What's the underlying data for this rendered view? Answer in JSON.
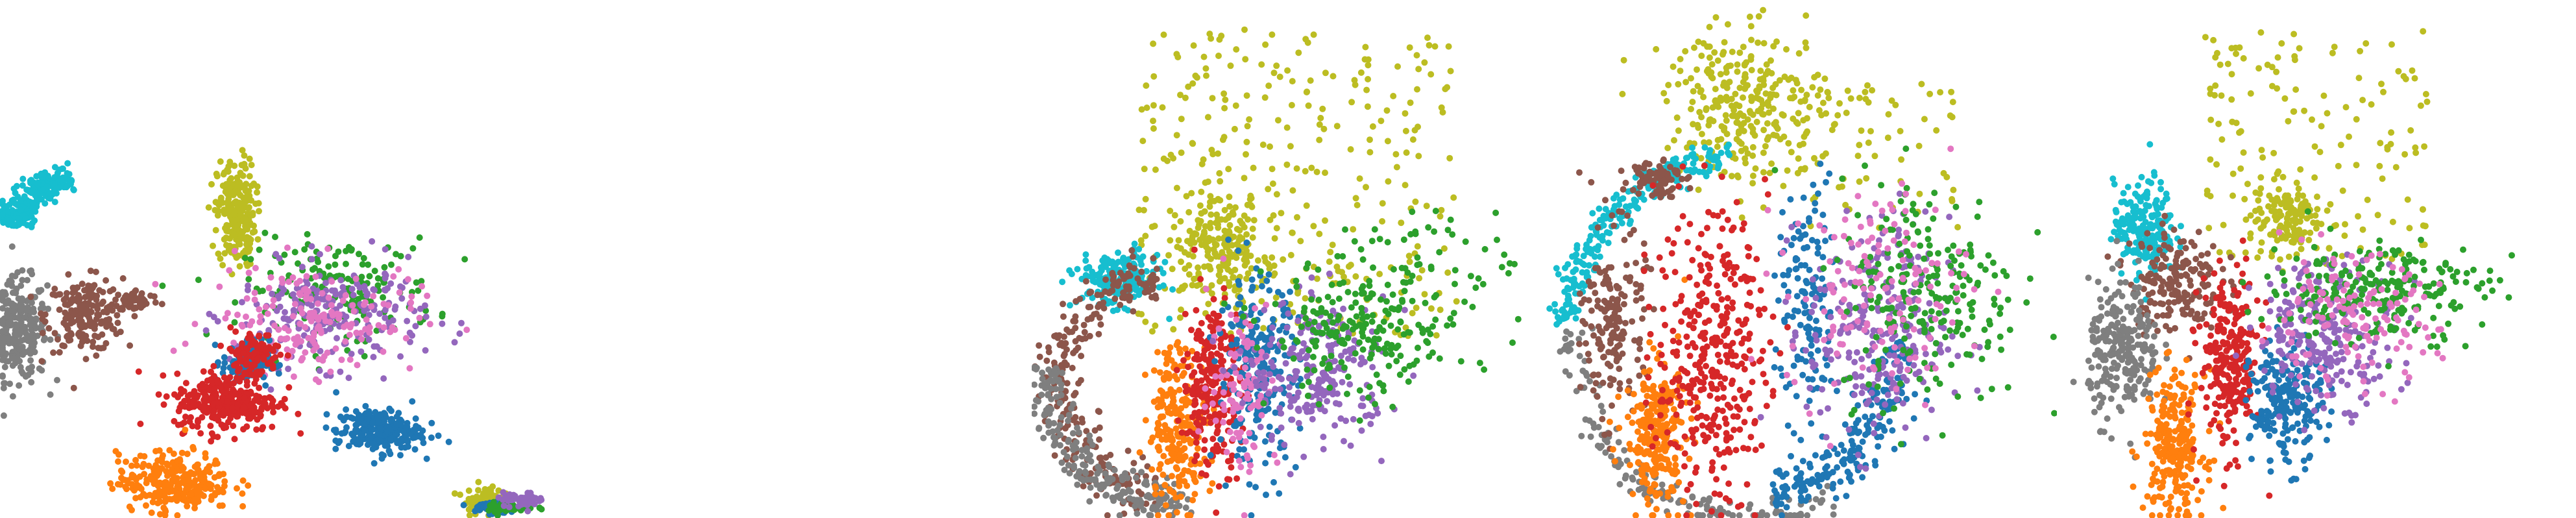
{
  "figure": {
    "axes_visible": false,
    "point_size": "small"
  },
  "colors": {
    "blue": "#1f77b4",
    "orange": "#ff7f0e",
    "green": "#2ca02c",
    "red": "#d62728",
    "purple": "#9467bd",
    "brown": "#8c564b",
    "pink": "#e377c2",
    "gray": "#7f7f7f",
    "olive": "#bcbd22",
    "cyan": "#17becf"
  },
  "chart_data": [
    {
      "type": "scatter",
      "grid": false,
      "legend": "none",
      "xlim": [
        0,
        100
      ],
      "ylim": [
        0,
        100
      ],
      "clusters": [
        {
          "color": "cyan",
          "shape": "arc",
          "cx": 22,
          "cy": 78,
          "r": 16,
          "a0": 100,
          "a1": 170,
          "thick": 4,
          "n": 220
        },
        {
          "color": "gray",
          "shape": "blob",
          "cx": 8,
          "cy": 52,
          "rx": 6,
          "ry": 14,
          "n": 260
        },
        {
          "color": "brown",
          "shape": "blob",
          "cx": 22,
          "cy": 56,
          "rx": 8,
          "ry": 10,
          "n": 200
        },
        {
          "color": "brown",
          "shape": "blob",
          "cx": 33,
          "cy": 60,
          "rx": 5,
          "ry": 3,
          "n": 50
        },
        {
          "color": "olive",
          "shape": "blob",
          "cx": 54,
          "cy": 84,
          "rx": 4,
          "ry": 15,
          "n": 240
        },
        {
          "color": "green",
          "shape": "blob",
          "cx": 76,
          "cy": 63,
          "rx": 20,
          "ry": 14,
          "n": 170
        },
        {
          "color": "purple",
          "shape": "blob",
          "cx": 74,
          "cy": 56,
          "rx": 20,
          "ry": 14,
          "n": 220
        },
        {
          "color": "pink",
          "shape": "blob",
          "cx": 70,
          "cy": 55,
          "rx": 22,
          "ry": 15,
          "n": 170
        },
        {
          "color": "blue",
          "shape": "blob",
          "cx": 56,
          "cy": 43,
          "rx": 5,
          "ry": 6,
          "n": 110
        },
        {
          "color": "red",
          "shape": "blob",
          "cx": 52,
          "cy": 32,
          "rx": 11,
          "ry": 8,
          "n": 300
        },
        {
          "color": "red",
          "shape": "blob",
          "cx": 57,
          "cy": 45,
          "rx": 6,
          "ry": 7,
          "n": 100
        },
        {
          "color": "blue",
          "shape": "blob",
          "cx": 84,
          "cy": 24,
          "rx": 9,
          "ry": 6,
          "n": 240
        },
        {
          "color": "orange",
          "shape": "blob",
          "cx": 41,
          "cy": 10,
          "rx": 12,
          "ry": 8,
          "n": 280
        },
        {
          "color": "olive",
          "shape": "blob",
          "cx": 106,
          "cy": 5,
          "rx": 4,
          "ry": 4,
          "n": 80
        },
        {
          "color": "blue",
          "shape": "blob",
          "cx": 108,
          "cy": 3,
          "rx": 5,
          "ry": 2,
          "n": 50
        },
        {
          "color": "green",
          "shape": "blob",
          "cx": 112,
          "cy": 3,
          "rx": 5,
          "ry": 2,
          "n": 40
        },
        {
          "color": "purple",
          "shape": "blob",
          "cx": 114,
          "cy": 5,
          "rx": 5,
          "ry": 2,
          "n": 40
        }
      ]
    },
    {
      "type": "scatter",
      "grid": false,
      "legend": "none",
      "xlim": [
        0,
        100
      ],
      "ylim": [
        0,
        100
      ],
      "clusters": [
        {
          "color": "olive",
          "shape": "scatter",
          "cx": 52,
          "cy": 65,
          "rx": 32,
          "ry": 30,
          "n": 300
        },
        {
          "color": "olive",
          "shape": "blob",
          "cx": 36,
          "cy": 52,
          "rx": 10,
          "ry": 10,
          "n": 200
        },
        {
          "color": "cyan",
          "shape": "blob",
          "cx": 16,
          "cy": 46,
          "rx": 8,
          "ry": 5,
          "n": 200
        },
        {
          "color": "brown",
          "shape": "arc",
          "cx": 24,
          "cy": 26,
          "r": 20,
          "a0": 90,
          "a1": 270,
          "thick": 5,
          "n": 260
        },
        {
          "color": "gray",
          "shape": "arc",
          "cx": 24,
          "cy": 26,
          "r": 22,
          "a0": 170,
          "a1": 285,
          "thick": 4,
          "n": 220
        },
        {
          "color": "orange",
          "shape": "blob",
          "cx": 28,
          "cy": 18,
          "rx": 6,
          "ry": 16,
          "n": 220
        },
        {
          "color": "red",
          "shape": "blob",
          "cx": 35,
          "cy": 26,
          "rx": 6,
          "ry": 17,
          "n": 260
        },
        {
          "color": "blue",
          "shape": "blob",
          "cx": 44,
          "cy": 28,
          "rx": 8,
          "ry": 18,
          "n": 230
        },
        {
          "color": "pink",
          "shape": "blob",
          "cx": 41,
          "cy": 26,
          "rx": 7,
          "ry": 17,
          "n": 100
        },
        {
          "color": "purple",
          "shape": "blob",
          "cx": 56,
          "cy": 28,
          "rx": 14,
          "ry": 14,
          "n": 230
        },
        {
          "color": "green",
          "shape": "blob",
          "cx": 64,
          "cy": 36,
          "rx": 18,
          "ry": 14,
          "n": 200
        },
        {
          "color": "green",
          "shape": "scatter",
          "cx": 80,
          "cy": 44,
          "rx": 16,
          "ry": 16,
          "n": 60
        }
      ]
    },
    {
      "type": "scatter",
      "grid": false,
      "legend": "none",
      "xlim": [
        0,
        100
      ],
      "ylim": [
        0,
        100
      ],
      "clusters": [
        {
          "color": "olive",
          "shape": "blob",
          "cx": 40,
          "cy": 80,
          "rx": 16,
          "ry": 14,
          "n": 280
        },
        {
          "color": "olive",
          "shape": "scatter",
          "cx": 60,
          "cy": 70,
          "rx": 22,
          "ry": 14,
          "n": 80
        },
        {
          "color": "cyan",
          "shape": "arc",
          "cx": 40,
          "cy": 34,
          "r": 36,
          "a0": 95,
          "a1": 175,
          "thick": 3,
          "n": 240
        },
        {
          "color": "brown",
          "shape": "blob",
          "cx": 22,
          "cy": 66,
          "rx": 5,
          "ry": 4,
          "n": 80
        },
        {
          "color": "gray",
          "shape": "arc",
          "cx": 40,
          "cy": 34,
          "r": 34,
          "a0": 175,
          "a1": 300,
          "thick": 3,
          "n": 160
        },
        {
          "color": "brown",
          "shape": "blob",
          "cx": 14,
          "cy": 38,
          "rx": 6,
          "ry": 18,
          "n": 180
        },
        {
          "color": "orange",
          "shape": "blob",
          "cx": 22,
          "cy": 16,
          "rx": 6,
          "ry": 14,
          "n": 240
        },
        {
          "color": "red",
          "shape": "blob",
          "cx": 33,
          "cy": 32,
          "rx": 11,
          "ry": 28,
          "n": 360
        },
        {
          "color": "blue",
          "shape": "arc",
          "cx": 40,
          "cy": 34,
          "r": 30,
          "a0": 280,
          "a1": 360,
          "thick": 5,
          "n": 200
        },
        {
          "color": "blue",
          "shape": "blob",
          "cx": 52,
          "cy": 40,
          "rx": 6,
          "ry": 24,
          "n": 140
        },
        {
          "color": "purple",
          "shape": "blob",
          "cx": 66,
          "cy": 36,
          "rx": 14,
          "ry": 22,
          "n": 260
        },
        {
          "color": "green",
          "shape": "blob",
          "cx": 76,
          "cy": 44,
          "rx": 18,
          "ry": 22,
          "n": 230
        },
        {
          "color": "pink",
          "shape": "blob",
          "cx": 66,
          "cy": 44,
          "rx": 18,
          "ry": 20,
          "n": 140
        }
      ]
    },
    {
      "type": "scatter",
      "grid": false,
      "legend": "none",
      "xlim": [
        0,
        100
      ],
      "ylim": [
        0,
        100
      ],
      "clusters": [
        {
          "color": "olive",
          "shape": "scatter",
          "cx": 50,
          "cy": 72,
          "rx": 22,
          "ry": 22,
          "n": 160
        },
        {
          "color": "olive",
          "shape": "blob",
          "cx": 44,
          "cy": 58,
          "rx": 7,
          "ry": 7,
          "n": 120
        },
        {
          "color": "cyan",
          "shape": "blob",
          "cx": 16,
          "cy": 56,
          "rx": 6,
          "ry": 9,
          "n": 200
        },
        {
          "color": "brown",
          "shape": "blob",
          "cx": 22,
          "cy": 46,
          "rx": 9,
          "ry": 10,
          "n": 180
        },
        {
          "color": "gray",
          "shape": "blob",
          "cx": 12,
          "cy": 32,
          "rx": 7,
          "ry": 13,
          "n": 240
        },
        {
          "color": "orange",
          "shape": "blob",
          "cx": 22,
          "cy": 14,
          "rx": 6,
          "ry": 14,
          "n": 240
        },
        {
          "color": "red",
          "shape": "blob",
          "cx": 33,
          "cy": 30,
          "rx": 6,
          "ry": 17,
          "n": 260
        },
        {
          "color": "blue",
          "shape": "blob",
          "cx": 44,
          "cy": 22,
          "rx": 7,
          "ry": 12,
          "n": 220
        },
        {
          "color": "purple",
          "shape": "blob",
          "cx": 52,
          "cy": 36,
          "rx": 14,
          "ry": 14,
          "n": 240
        },
        {
          "color": "green",
          "shape": "blob",
          "cx": 62,
          "cy": 44,
          "rx": 22,
          "ry": 10,
          "n": 230
        },
        {
          "color": "pink",
          "shape": "blob",
          "cx": 56,
          "cy": 38,
          "rx": 18,
          "ry": 12,
          "n": 140
        }
      ]
    }
  ]
}
